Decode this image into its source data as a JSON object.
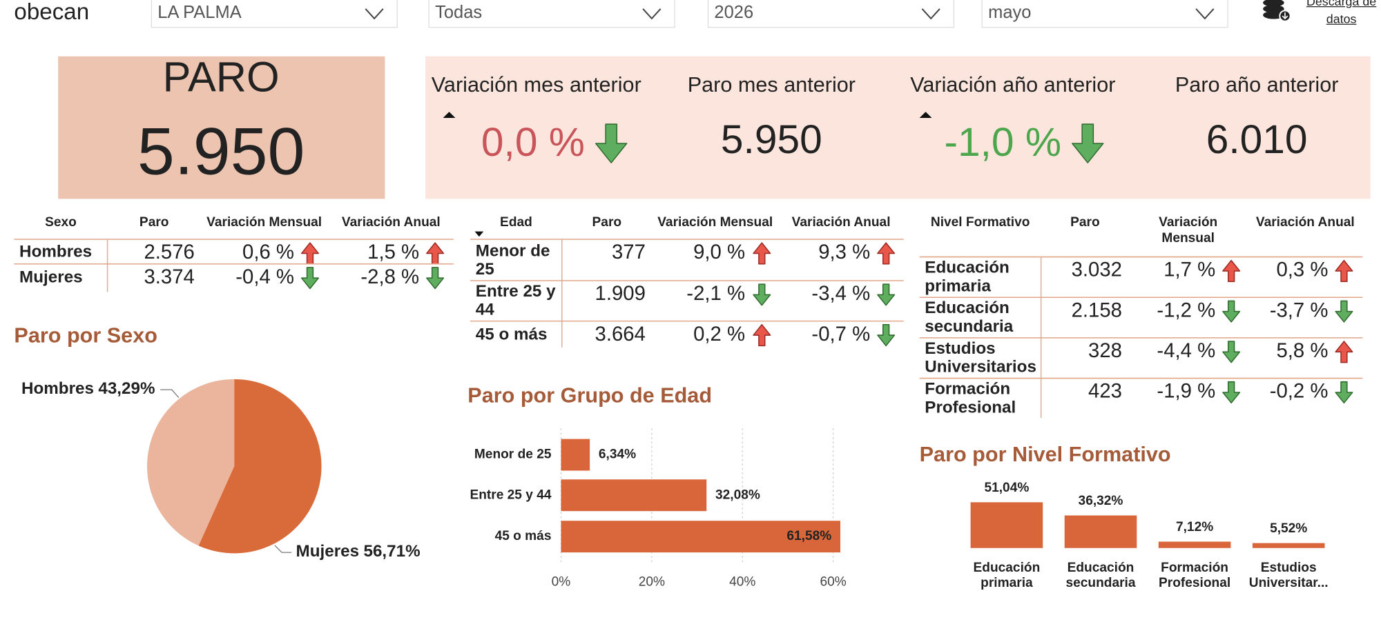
{
  "header": {
    "logo": "obecan",
    "filters": [
      "LA PALMA",
      "Todas",
      "2026",
      "mayo"
    ],
    "download": "Descarga de datos"
  },
  "kpi": {
    "title": "PARO",
    "value": "5.950",
    "items": [
      {
        "label": "Variación mes anterior",
        "value": "0,0 %",
        "trend": "down",
        "color": "#c9545a"
      },
      {
        "label": "Paro mes anterior",
        "value": "5.950"
      },
      {
        "label": "Variación año anterior",
        "value": "-1,0 %",
        "trend": "down",
        "color": "#4ca64c"
      },
      {
        "label": "Paro año anterior",
        "value": "6.010"
      }
    ]
  },
  "tables": [
    {
      "columns": [
        "Sexo",
        "Paro",
        "Variación Mensual",
        "Variación Anual"
      ],
      "rows": [
        {
          "cells": [
            "Hombres",
            "2.576",
            "0,6 %",
            "1,5 %"
          ],
          "trends": [
            "up",
            "up"
          ]
        },
        {
          "cells": [
            "Mujeres",
            "3.374",
            "-0,4 %",
            "-2,8 %"
          ],
          "trends": [
            "down",
            "down"
          ]
        }
      ]
    },
    {
      "columns": [
        "Edad",
        "Paro",
        "Variación Mensual",
        "Variación Anual"
      ],
      "rows": [
        {
          "cells": [
            "Menor de 25",
            "377",
            "9,0 %",
            "9,3 %"
          ],
          "trends": [
            "up",
            "up"
          ]
        },
        {
          "cells": [
            "Entre 25 y 44",
            "1.909",
            "-2,1 %",
            "-3,4 %"
          ],
          "trends": [
            "down",
            "down"
          ]
        },
        {
          "cells": [
            "45 o más",
            "3.664",
            "0,2 %",
            "-0,7 %"
          ],
          "trends": [
            "up",
            "down"
          ]
        }
      ]
    },
    {
      "columns": [
        "Nivel Formativo",
        "Paro",
        "Variación Mensual",
        "Variación Anual"
      ],
      "rows": [
        {
          "cells": [
            "Educación primaria",
            "3.032",
            "1,7 %",
            "0,3 %"
          ],
          "trends": [
            "up",
            "up"
          ]
        },
        {
          "cells": [
            "Educación secundaria",
            "2.158",
            "-1,2 %",
            "-3,7 %"
          ],
          "trends": [
            "down",
            "down"
          ]
        },
        {
          "cells": [
            "Estudios Universitarios",
            "328",
            "-4,4 %",
            "5,8 %"
          ],
          "trends": [
            "down",
            "up"
          ]
        },
        {
          "cells": [
            "Formación Profesional",
            "423",
            "-1,9 %",
            "-0,2 %"
          ],
          "trends": [
            "down",
            "down"
          ]
        }
      ]
    }
  ],
  "chart_data": [
    {
      "type": "pie",
      "title": "Paro por Sexo",
      "categories": [
        "Hombres",
        "Mujeres"
      ],
      "values": [
        43.29,
        56.71
      ],
      "value_labels": [
        "43,29%",
        "56,71%"
      ],
      "colors": [
        "#ebb59d",
        "#d96b3b"
      ]
    },
    {
      "type": "bar",
      "orientation": "horizontal",
      "title": "Paro por Grupo de Edad",
      "categories": [
        "Menor de 25",
        "Entre 25 y 44",
        "45 o más"
      ],
      "values": [
        6.34,
        32.08,
        61.58
      ],
      "value_labels": [
        "6,34%",
        "32,08%",
        "61,58%"
      ],
      "color": "#d9663a",
      "xlim": [
        0,
        60
      ],
      "xticks": [
        {
          "value": 0,
          "label": "0%"
        },
        {
          "value": 20,
          "label": "20%"
        },
        {
          "value": 40,
          "label": "40%"
        },
        {
          "value": 60,
          "label": "60%"
        }
      ],
      "grid": true
    },
    {
      "type": "bar",
      "orientation": "vertical",
      "title": "Paro por Nivel Formativo",
      "categories": [
        "Educación primaria",
        "Educación secundaria",
        "Formación Profesional",
        "Estudios Universitar..."
      ],
      "values": [
        51.04,
        36.32,
        7.12,
        5.52
      ],
      "value_labels": [
        "51,04%",
        "36,32%",
        "7,12%",
        "5,52%"
      ],
      "color": "#d9663a"
    }
  ]
}
